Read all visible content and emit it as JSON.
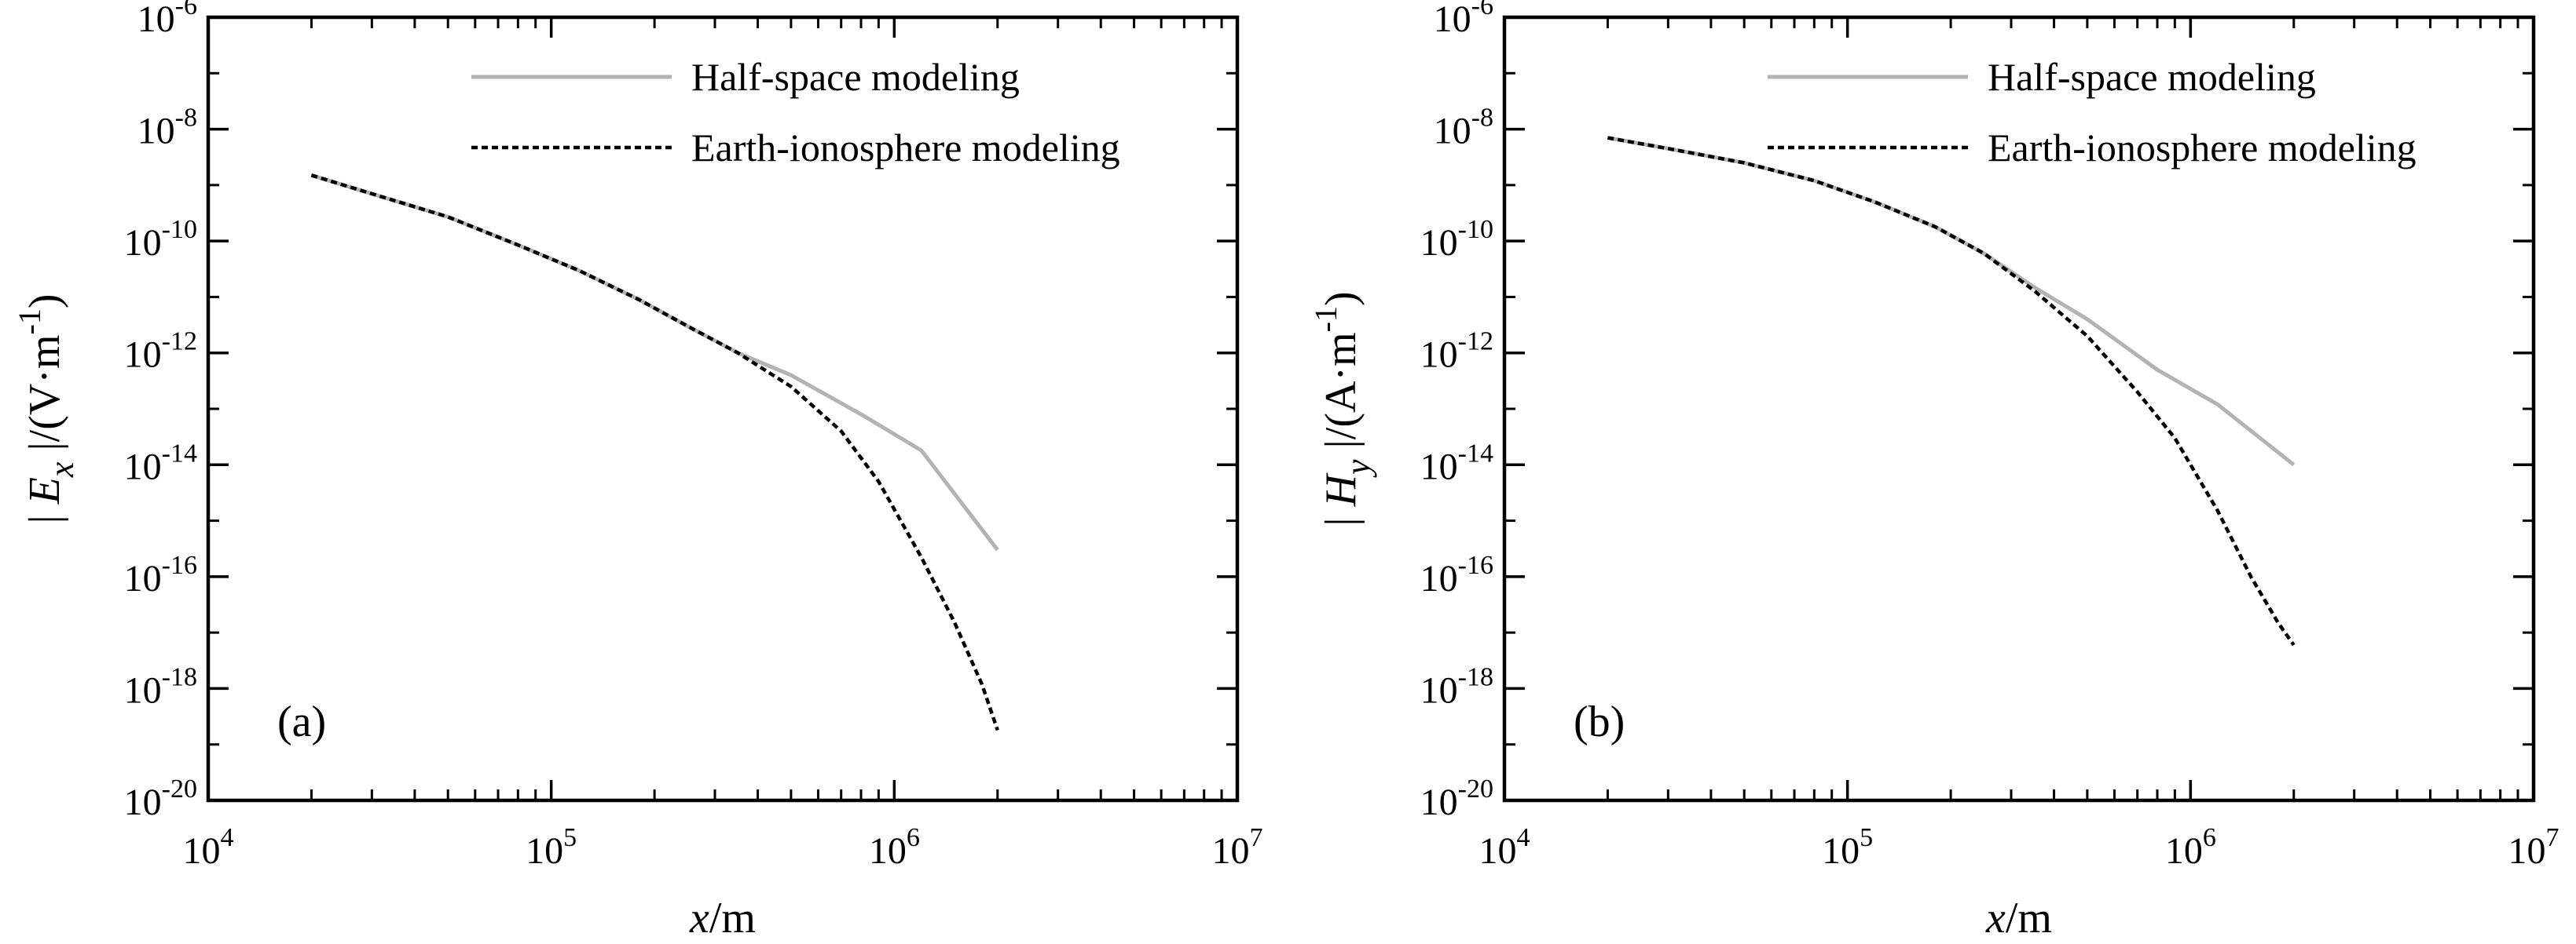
{
  "chart_data": [
    {
      "type": "line",
      "panel_label": "(a)",
      "xlabel": {
        "var": "x",
        "unit": "/m"
      },
      "ylabel": {
        "pre": "| ",
        "var": "E",
        "sub": "x",
        "post": " |/(V·m",
        "sup": "-1",
        "close": ")"
      },
      "xscale": "log",
      "yscale": "log",
      "xlim": [
        10000,
        10000000
      ],
      "ylim": [
        1e-20,
        1e-06
      ],
      "x_ticks": [
        {
          "base": "10",
          "exp": "4",
          "value": 10000
        },
        {
          "base": "10",
          "exp": "5",
          "value": 100000
        },
        {
          "base": "10",
          "exp": "6",
          "value": 1000000
        },
        {
          "base": "10",
          "exp": "7",
          "value": 10000000
        }
      ],
      "y_ticks": [
        {
          "base": "10",
          "exp": "-6",
          "value": 1e-06
        },
        {
          "base": "10",
          "exp": "-8",
          "value": 1e-08
        },
        {
          "base": "10",
          "exp": "-10",
          "value": 1e-10
        },
        {
          "base": "10",
          "exp": "-12",
          "value": 1e-12
        },
        {
          "base": "10",
          "exp": "-14",
          "value": 1e-14
        },
        {
          "base": "10",
          "exp": "-16",
          "value": 1e-16
        },
        {
          "base": "10",
          "exp": "-18",
          "value": 1e-18
        },
        {
          "base": "10",
          "exp": "-20",
          "value": 1e-20
        }
      ],
      "legend_position": "top-right",
      "series": [
        {
          "name": "Half-space modeling",
          "style": "solid",
          "color": "#b3b3b3",
          "x": [
            20000,
            30000,
            50000,
            80000,
            120000,
            180000,
            250000,
            350000,
            500000,
            800000,
            1200000,
            2000000
          ],
          "y": [
            1.5e-09,
            7e-10,
            2.7e-10,
            8.5e-11,
            3e-11,
            9e-12,
            3e-12,
            1e-12,
            4e-13,
            8e-14,
            1.8e-14,
            3e-16
          ]
        },
        {
          "name": "Earth-ionosphere modeling",
          "style": "dashed",
          "color": "#000000",
          "x": [
            20000,
            30000,
            50000,
            80000,
            120000,
            180000,
            250000,
            350000,
            500000,
            700000,
            900000,
            1200000,
            1500000,
            1800000,
            2000000
          ],
          "y": [
            1.5e-09,
            7e-10,
            2.7e-10,
            8.5e-11,
            3e-11,
            9e-12,
            3e-12,
            1e-12,
            2.5e-13,
            4e-14,
            5e-15,
            2.2e-16,
            1.5e-17,
            1.2e-18,
            1.8e-19
          ]
        }
      ]
    },
    {
      "type": "line",
      "panel_label": "(b)",
      "xlabel": {
        "var": "x",
        "unit": "/m"
      },
      "ylabel": {
        "pre": "| ",
        "var": "H",
        "sub": "y",
        "post": " |/(A·m",
        "sup": "-1",
        "close": ")"
      },
      "xscale": "log",
      "yscale": "log",
      "xlim": [
        10000,
        10000000
      ],
      "ylim": [
        1e-20,
        1e-06
      ],
      "x_ticks": [
        {
          "base": "10",
          "exp": "4",
          "value": 10000
        },
        {
          "base": "10",
          "exp": "5",
          "value": 100000
        },
        {
          "base": "10",
          "exp": "6",
          "value": 1000000
        },
        {
          "base": "10",
          "exp": "7",
          "value": 10000000
        }
      ],
      "y_ticks": [
        {
          "base": "10",
          "exp": "-6",
          "value": 1e-06
        },
        {
          "base": "10",
          "exp": "-8",
          "value": 1e-08
        },
        {
          "base": "10",
          "exp": "-10",
          "value": 1e-10
        },
        {
          "base": "10",
          "exp": "-12",
          "value": 1e-12
        },
        {
          "base": "10",
          "exp": "-14",
          "value": 1e-14
        },
        {
          "base": "10",
          "exp": "-16",
          "value": 1e-16
        },
        {
          "base": "10",
          "exp": "-18",
          "value": 1e-18
        },
        {
          "base": "10",
          "exp": "-20",
          "value": 1e-20
        }
      ],
      "legend_position": "top-right",
      "series": [
        {
          "name": "Half-space modeling",
          "style": "solid",
          "color": "#b3b3b3",
          "x": [
            20000,
            30000,
            50000,
            80000,
            120000,
            180000,
            250000,
            350000,
            500000,
            800000,
            1200000,
            2000000
          ],
          "y": [
            7e-09,
            4.5e-09,
            2.5e-09,
            1.2e-09,
            5e-10,
            1.8e-10,
            6e-11,
            1.5e-11,
            4e-12,
            5e-13,
            1.2e-13,
            1e-14
          ]
        },
        {
          "name": "Earth-ionosphere modeling",
          "style": "dashed",
          "color": "#000000",
          "x": [
            20000,
            30000,
            50000,
            80000,
            120000,
            180000,
            250000,
            350000,
            500000,
            700000,
            900000,
            1200000,
            1500000,
            1800000,
            2000000
          ],
          "y": [
            7e-09,
            4.5e-09,
            2.5e-09,
            1.2e-09,
            5e-10,
            1.8e-10,
            6e-11,
            1.3e-11,
            2e-12,
            2e-13,
            3e-14,
            1.5e-15,
            1e-16,
            1.5e-17,
            6e-18
          ]
        }
      ]
    }
  ]
}
